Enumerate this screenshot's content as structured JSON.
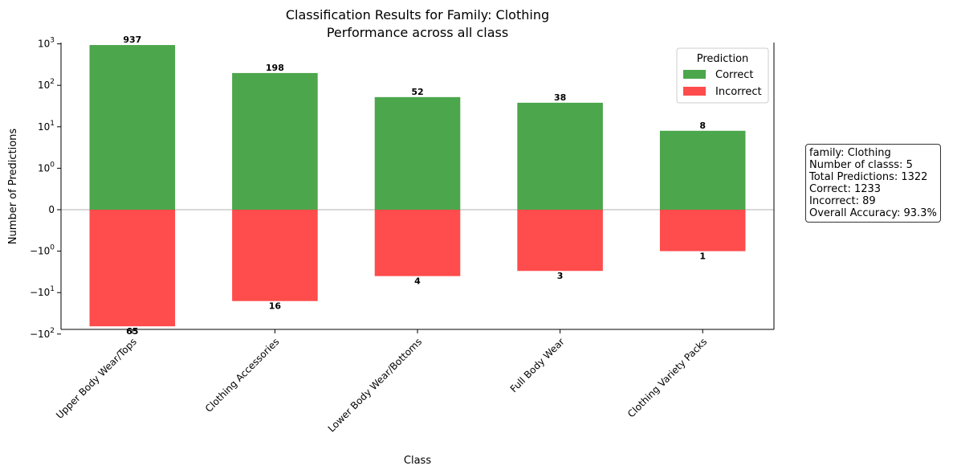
{
  "chart_data": {
    "type": "bar",
    "title": "Classification Results for Family: Clothing",
    "subtitle": "Performance across all class",
    "xlabel": "Class",
    "ylabel": "Number of Predictions",
    "yscale": "symlog",
    "categories": [
      "Upper Body Wear/Tops",
      "Clothing Accessories",
      "Lower Body Wear/Bottoms",
      "Full Body Wear",
      "Clothing Variety Packs"
    ],
    "series": [
      {
        "name": "Correct",
        "color": "#4ca64c",
        "values": [
          937,
          198,
          52,
          38,
          8
        ]
      },
      {
        "name": "Incorrect",
        "color": "#ff4c4c",
        "values": [
          -65,
          -16,
          -4,
          -3,
          -1
        ]
      }
    ],
    "data_labels": {
      "correct": [
        "937",
        "198",
        "52",
        "38",
        "8"
      ],
      "incorrect": [
        "65",
        "16",
        "4",
        "3",
        "1"
      ]
    },
    "yticks": [
      {
        "value": 1000,
        "label": "10^3"
      },
      {
        "value": 100,
        "label": "10^2"
      },
      {
        "value": 10,
        "label": "10^1"
      },
      {
        "value": 1,
        "label": "10^0"
      },
      {
        "value": 0,
        "label": "0"
      },
      {
        "value": -1,
        "label": "−10^0"
      },
      {
        "value": -10,
        "label": "−10^1"
      },
      {
        "value": -100,
        "label": "−10^2"
      }
    ],
    "legend": {
      "title": "Prediction",
      "position": "top-right",
      "entries": [
        "Correct",
        "Incorrect"
      ]
    },
    "grid": false
  },
  "info_box": {
    "lines": [
      "family: Clothing",
      "Number of classs: 5",
      "Total Predictions: 1322",
      "Correct: 1233",
      "Incorrect: 89",
      "Overall Accuracy: 93.3%"
    ]
  }
}
